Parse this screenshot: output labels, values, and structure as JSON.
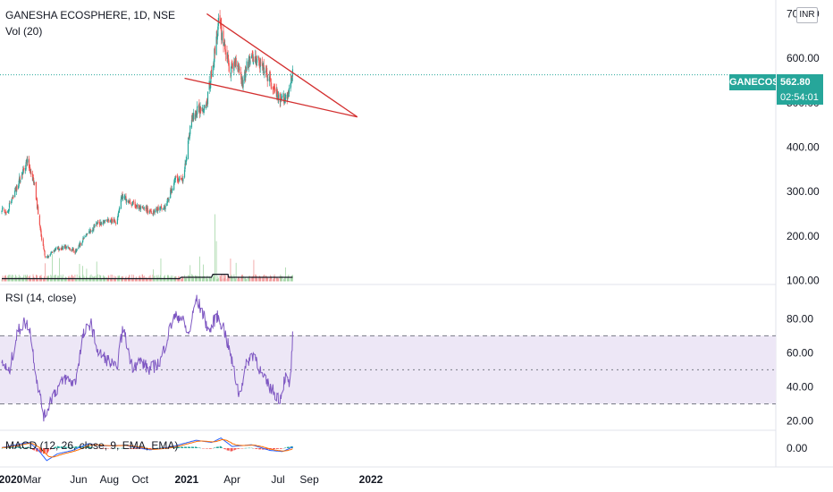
{
  "header": {
    "title": "GANESHA ECOSPHERE, 1D, NSE",
    "volume_label": "Vol (20)",
    "currency": "INR"
  },
  "price_badge": {
    "symbol": "GANECOS",
    "price": "562.80",
    "countdown": "02:54:01"
  },
  "colors": {
    "up": "#26a69a",
    "down": "#ef5350",
    "rsi": "#7e57c2",
    "rsi_band": "#ede7f6",
    "macd": "#2962ff",
    "signal": "#ff6d00",
    "trendline": "#d32f2f",
    "volume_ma": "#131722"
  },
  "chart_data": [
    {
      "type": "candlestick",
      "y_ticks": [
        "700.00",
        "600.00",
        "500.00",
        "400.00",
        "300.00",
        "200.00",
        "100.00"
      ],
      "ylim": [
        95,
        715
      ],
      "x_ticks": [
        "2020",
        "Mar",
        "Jun",
        "Aug",
        "Oct",
        "2021",
        "Apr",
        "Jul",
        "Sep",
        "2022"
      ],
      "last_price": 562.8,
      "close_path": [
        [
          "2020-01-01",
          262
        ],
        [
          "2020-01-10",
          250
        ],
        [
          "2020-01-25",
          295
        ],
        [
          "2020-02-10",
          340
        ],
        [
          "2020-02-20",
          370
        ],
        [
          "2020-03-05",
          320
        ],
        [
          "2020-03-20",
          190
        ],
        [
          "2020-03-28",
          150
        ],
        [
          "2020-04-15",
          170
        ],
        [
          "2020-05-10",
          175
        ],
        [
          "2020-05-25",
          165
        ],
        [
          "2020-06-15",
          200
        ],
        [
          "2020-07-05",
          225
        ],
        [
          "2020-07-25",
          235
        ],
        [
          "2020-08-15",
          232
        ],
        [
          "2020-08-25",
          290
        ],
        [
          "2020-09-10",
          275
        ],
        [
          "2020-10-01",
          262
        ],
        [
          "2020-10-25",
          255
        ],
        [
          "2020-11-20",
          265
        ],
        [
          "2020-12-10",
          330
        ],
        [
          "2020-12-25",
          325
        ],
        [
          "2021-01-10",
          460
        ],
        [
          "2021-01-25",
          485
        ],
        [
          "2021-02-10",
          500
        ],
        [
          "2021-02-25",
          610
        ],
        [
          "2021-03-05",
          680
        ],
        [
          "2021-03-15",
          640
        ],
        [
          "2021-03-28",
          570
        ],
        [
          "2021-04-10",
          600
        ],
        [
          "2021-04-22",
          545
        ],
        [
          "2021-05-05",
          600
        ],
        [
          "2021-05-20",
          595
        ],
        [
          "2021-06-05",
          570
        ],
        [
          "2021-06-20",
          535
        ],
        [
          "2021-07-05",
          500
        ],
        [
          "2021-07-20",
          520
        ],
        [
          "2021-07-30",
          562.8
        ]
      ],
      "trendlines": [
        {
          "from": [
            "2021-02-10",
            700
          ],
          "to": [
            "2021-12-05",
            468
          ]
        },
        {
          "from": [
            "2020-12-28",
            555
          ],
          "to": [
            "2021-12-05",
            468
          ]
        }
      ],
      "volume": {
        "label": "Vol (20)",
        "ma_level_range": [
          104,
          118
        ]
      }
    },
    {
      "type": "line",
      "title": "RSI (14, close)",
      "y_ticks": [
        "80.00",
        "60.00",
        "40.00",
        "20.00"
      ],
      "ylim": [
        15,
        97
      ],
      "bands": [
        30,
        50,
        70
      ],
      "path": [
        [
          "2020-01-01",
          55
        ],
        [
          "2020-01-15",
          48
        ],
        [
          "2020-02-01",
          72
        ],
        [
          "2020-02-15",
          78
        ],
        [
          "2020-02-25",
          75
        ],
        [
          "2020-03-10",
          45
        ],
        [
          "2020-03-25",
          22
        ],
        [
          "2020-04-10",
          35
        ],
        [
          "2020-05-05",
          45
        ],
        [
          "2020-05-25",
          42
        ],
        [
          "2020-06-10",
          70
        ],
        [
          "2020-06-25",
          78
        ],
        [
          "2020-07-10",
          60
        ],
        [
          "2020-08-01",
          55
        ],
        [
          "2020-08-15",
          50
        ],
        [
          "2020-08-28",
          75
        ],
        [
          "2020-09-15",
          52
        ],
        [
          "2020-10-01",
          55
        ],
        [
          "2020-10-20",
          50
        ],
        [
          "2020-11-10",
          55
        ],
        [
          "2020-12-05",
          80
        ],
        [
          "2020-12-20",
          82
        ],
        [
          "2021-01-05",
          70
        ],
        [
          "2021-01-20",
          92
        ],
        [
          "2021-02-01",
          84
        ],
        [
          "2021-02-15",
          72
        ],
        [
          "2021-03-01",
          82
        ],
        [
          "2021-03-15",
          75
        ],
        [
          "2021-03-28",
          60
        ],
        [
          "2021-04-15",
          35
        ],
        [
          "2021-05-01",
          55
        ],
        [
          "2021-05-15",
          60
        ],
        [
          "2021-06-01",
          45
        ],
        [
          "2021-06-20",
          38
        ],
        [
          "2021-07-05",
          33
        ],
        [
          "2021-07-15",
          46
        ],
        [
          "2021-07-25",
          40
        ],
        [
          "2021-07-30",
          69
        ]
      ]
    },
    {
      "type": "macd",
      "title": "MACD (12, 26, close, 9, EMA, EMA)",
      "y_ticks": [
        "0.00"
      ],
      "ylim": [
        -30,
        30
      ],
      "macd_path": [
        [
          "2020-01-01",
          1
        ],
        [
          "2020-02-10",
          8
        ],
        [
          "2020-02-25",
          10
        ],
        [
          "2020-03-15",
          -5
        ],
        [
          "2020-03-30",
          -22
        ],
        [
          "2020-04-20",
          -10
        ],
        [
          "2020-05-20",
          -4
        ],
        [
          "2020-06-20",
          8
        ],
        [
          "2020-07-20",
          4
        ],
        [
          "2020-09-01",
          5
        ],
        [
          "2020-10-20",
          -3
        ],
        [
          "2020-12-01",
          2
        ],
        [
          "2020-12-25",
          8
        ],
        [
          "2021-01-20",
          14
        ],
        [
          "2021-02-20",
          10
        ],
        [
          "2021-03-10",
          18
        ],
        [
          "2021-04-01",
          3
        ],
        [
          "2021-05-10",
          6
        ],
        [
          "2021-06-15",
          -4
        ],
        [
          "2021-07-10",
          -6
        ],
        [
          "2021-07-30",
          2
        ]
      ]
    }
  ]
}
